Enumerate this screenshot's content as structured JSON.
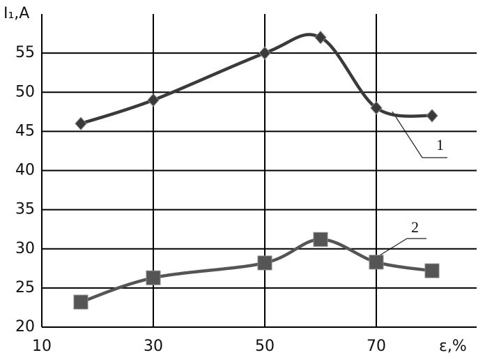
{
  "chart_data": {
    "type": "line",
    "y_label": "I₁,A",
    "x_label": "ε,%",
    "x": [
      17,
      30,
      50,
      60,
      70,
      80
    ],
    "series": [
      {
        "name": "1",
        "color": "#3a3a3a",
        "marker": "diamond",
        "values": [
          46,
          49,
          55,
          57,
          48,
          47
        ]
      },
      {
        "name": "2",
        "color": "#555555",
        "marker": "square",
        "values": [
          23.2,
          26.3,
          28.2,
          31.2,
          28.3,
          27.2
        ]
      }
    ],
    "xlim": [
      10,
      88
    ],
    "xticks": [
      10,
      30,
      50,
      70
    ],
    "ylim": [
      20,
      60
    ],
    "yticks": [
      20,
      25,
      30,
      35,
      40,
      45,
      50,
      55
    ],
    "grid": true
  }
}
